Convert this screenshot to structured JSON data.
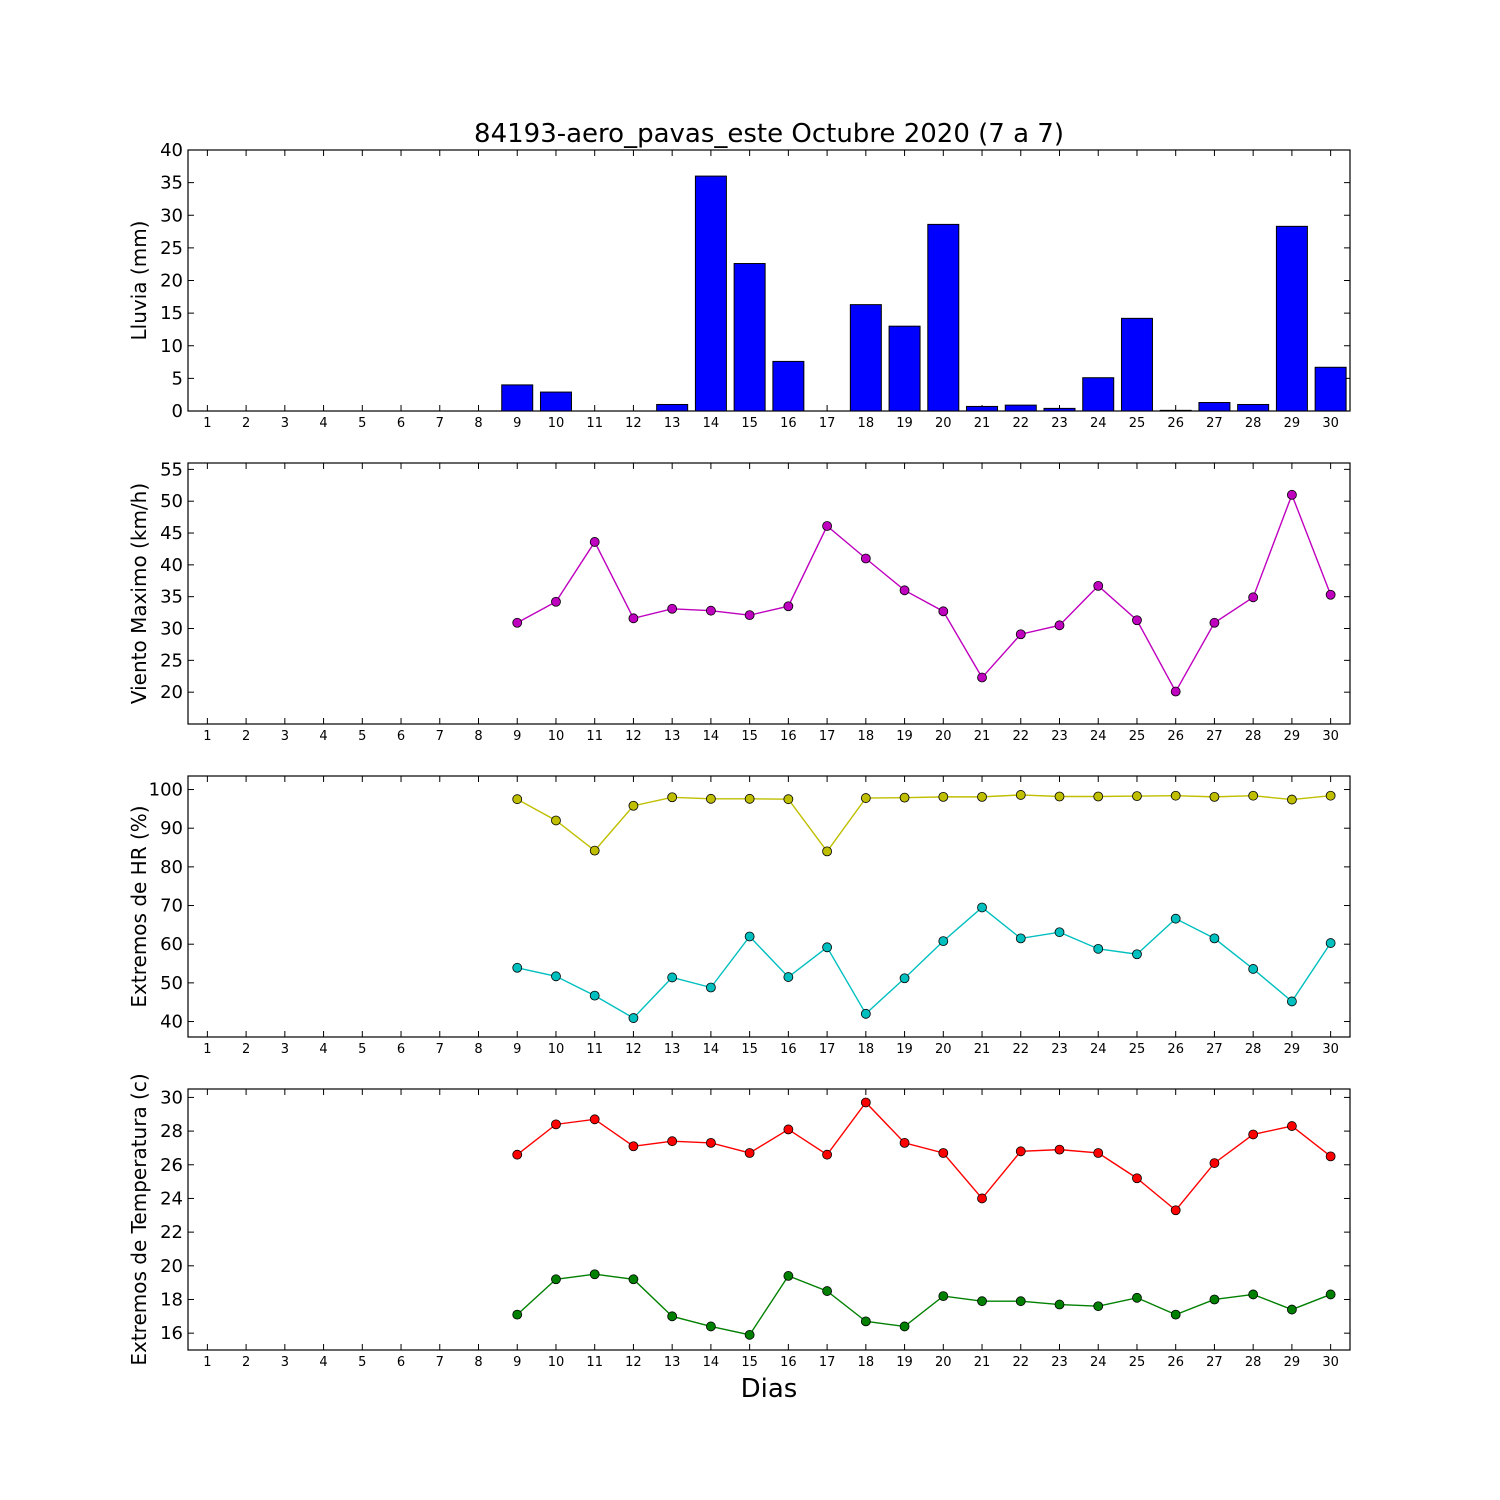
{
  "figure": {
    "title": "84193-aero_pavas_este Octubre 2020  (7 a 7)",
    "xlabel": "Dias"
  },
  "chart_data": [
    {
      "type": "bar",
      "ylabel": "Lluvia (mm)",
      "x": [
        1,
        2,
        3,
        4,
        5,
        6,
        7,
        8,
        9,
        10,
        11,
        12,
        13,
        14,
        15,
        16,
        17,
        18,
        19,
        20,
        21,
        22,
        23,
        24,
        25,
        26,
        27,
        28,
        29,
        30
      ],
      "ylim": [
        0,
        40
      ],
      "yticks": [
        0,
        5,
        10,
        15,
        20,
        25,
        30,
        35,
        40
      ],
      "series": [
        {
          "color": "#0000ff",
          "values": [
            null,
            null,
            null,
            null,
            null,
            null,
            null,
            null,
            4.0,
            2.9,
            0.0,
            0.0,
            1.0,
            36.0,
            22.6,
            7.6,
            0.0,
            16.3,
            13.0,
            28.6,
            0.7,
            0.9,
            0.4,
            5.1,
            14.2,
            0.1,
            1.3,
            1.0,
            28.3,
            6.7
          ]
        }
      ]
    },
    {
      "type": "line",
      "ylabel": "Viento Maximo (km/h)",
      "x": [
        1,
        2,
        3,
        4,
        5,
        6,
        7,
        8,
        9,
        10,
        11,
        12,
        13,
        14,
        15,
        16,
        17,
        18,
        19,
        20,
        21,
        22,
        23,
        24,
        25,
        26,
        27,
        28,
        29,
        30
      ],
      "ylim": [
        15,
        56
      ],
      "yticks": [
        20,
        25,
        30,
        35,
        40,
        45,
        50,
        55
      ],
      "series": [
        {
          "color": "#bf00bf",
          "values": [
            null,
            null,
            null,
            null,
            null,
            null,
            null,
            null,
            30.9,
            34.2,
            43.6,
            31.6,
            33.1,
            32.8,
            32.1,
            33.5,
            46.1,
            41.0,
            36.0,
            32.7,
            22.3,
            29.1,
            30.5,
            36.7,
            31.3,
            20.1,
            30.9,
            34.9,
            51.0,
            35.3
          ]
        }
      ]
    },
    {
      "type": "line",
      "ylabel": "Extremos de HR (%)",
      "x": [
        1,
        2,
        3,
        4,
        5,
        6,
        7,
        8,
        9,
        10,
        11,
        12,
        13,
        14,
        15,
        16,
        17,
        18,
        19,
        20,
        21,
        22,
        23,
        24,
        25,
        26,
        27,
        28,
        29,
        30
      ],
      "ylim": [
        36,
        103.5
      ],
      "yticks": [
        40,
        50,
        60,
        70,
        80,
        90,
        100
      ],
      "series": [
        {
          "color": "#bfbf00",
          "values": [
            null,
            null,
            null,
            null,
            null,
            null,
            null,
            null,
            97.5,
            92.0,
            84.2,
            95.8,
            98.0,
            97.6,
            97.6,
            97.5,
            84.0,
            97.8,
            97.9,
            98.1,
            98.1,
            98.6,
            98.2,
            98.2,
            98.3,
            98.4,
            98.1,
            98.4,
            97.4,
            98.4
          ]
        },
        {
          "color": "#00bfbf",
          "values": [
            null,
            null,
            null,
            null,
            null,
            null,
            null,
            null,
            53.9,
            51.7,
            46.7,
            40.9,
            51.4,
            48.8,
            62.0,
            51.5,
            59.2,
            42.0,
            51.2,
            60.8,
            69.5,
            61.5,
            63.1,
            58.8,
            57.4,
            66.6,
            61.5,
            53.6,
            45.2,
            60.3
          ]
        }
      ]
    },
    {
      "type": "line",
      "ylabel": "Extremos de Temperatura (c)",
      "x": [
        1,
        2,
        3,
        4,
        5,
        6,
        7,
        8,
        9,
        10,
        11,
        12,
        13,
        14,
        15,
        16,
        17,
        18,
        19,
        20,
        21,
        22,
        23,
        24,
        25,
        26,
        27,
        28,
        29,
        30
      ],
      "ylim": [
        15,
        30.5
      ],
      "yticks": [
        16,
        18,
        20,
        22,
        24,
        26,
        28,
        30
      ],
      "series": [
        {
          "color": "#ff0000",
          "values": [
            null,
            null,
            null,
            null,
            null,
            null,
            null,
            null,
            26.6,
            28.4,
            28.7,
            27.1,
            27.4,
            27.3,
            26.7,
            28.1,
            26.6,
            29.7,
            27.3,
            26.7,
            24.0,
            26.8,
            26.9,
            26.7,
            25.2,
            23.3,
            26.1,
            27.8,
            28.3,
            26.5
          ]
        },
        {
          "color": "#008000",
          "values": [
            null,
            null,
            null,
            null,
            null,
            null,
            null,
            null,
            17.1,
            19.2,
            19.5,
            19.2,
            17.0,
            16.4,
            15.9,
            19.4,
            18.5,
            16.7,
            16.4,
            18.2,
            17.9,
            17.9,
            17.7,
            17.6,
            18.1,
            17.1,
            18.0,
            18.3,
            17.4,
            18.3
          ]
        }
      ]
    }
  ]
}
